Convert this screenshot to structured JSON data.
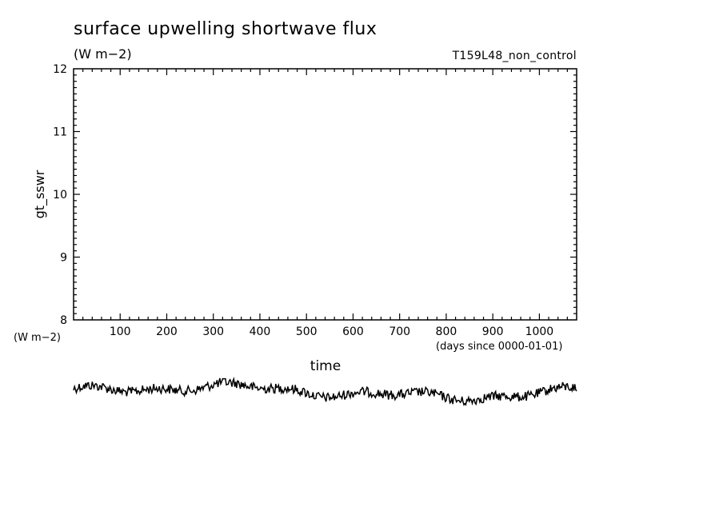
{
  "chart_data": {
    "type": "line",
    "title": "surface upwelling shortwave flux",
    "subtitle": "(W m−2)",
    "run_label": "T159L48_non_control",
    "ylabel": "gt_sswr",
    "y_unit_label": "(W m−2)",
    "xlabel": "time",
    "x_unit_label": "(days since 0000-01-01)",
    "xlim": [
      0,
      1080
    ],
    "ylim": [
      8,
      12
    ],
    "x_ticks": [
      100,
      200,
      300,
      400,
      500,
      600,
      700,
      800,
      900,
      1000
    ],
    "y_ticks": [
      8,
      9,
      10,
      11,
      12
    ],
    "grid": false,
    "series": [
      {
        "x_start": 0,
        "x_end": 1080,
        "trend_breakpoints_x": [
          0,
          60,
          100,
          150,
          200,
          260,
          280,
          340,
          380,
          420,
          480,
          560,
          620,
          700,
          740,
          800,
          850,
          900,
          950,
          1000,
          1050,
          1080
        ],
        "note_visible": "trace drawn below the plot frame (values off-scale)"
      }
    ]
  }
}
